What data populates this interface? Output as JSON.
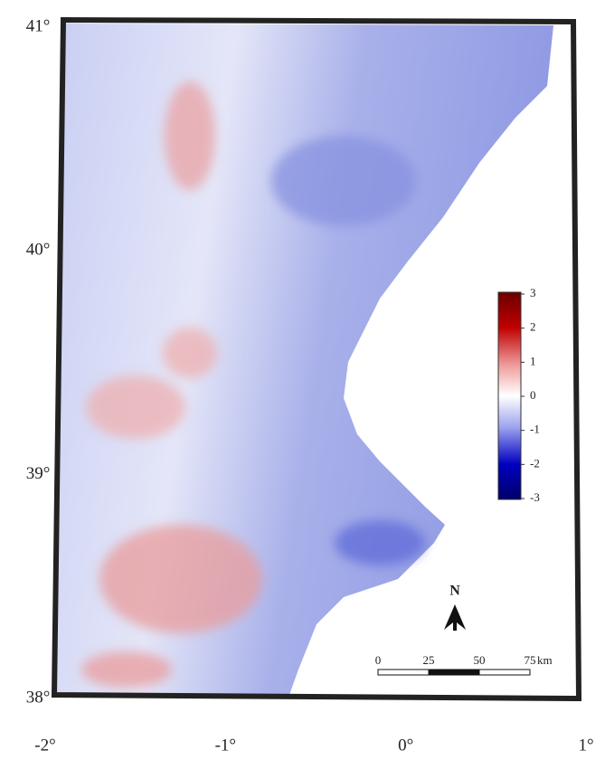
{
  "map": {
    "lat_ticks": [
      {
        "value": 41,
        "label": "41°"
      },
      {
        "value": 40,
        "label": "40°"
      },
      {
        "value": 39,
        "label": "39°"
      },
      {
        "value": 38,
        "label": "38°"
      }
    ],
    "lon_ticks": [
      {
        "value": -2,
        "label": "-2°"
      },
      {
        "value": -1,
        "label": "-1°"
      },
      {
        "value": 0,
        "label": "0°"
      },
      {
        "value": 1,
        "label": "1°"
      }
    ],
    "colorbar": {
      "ticks": [
        3,
        2,
        1,
        0,
        -1,
        -2,
        -3
      ]
    },
    "scale_bar": {
      "ticks": [
        0,
        25,
        50,
        75
      ],
      "unit": "km"
    },
    "north": "N"
  }
}
